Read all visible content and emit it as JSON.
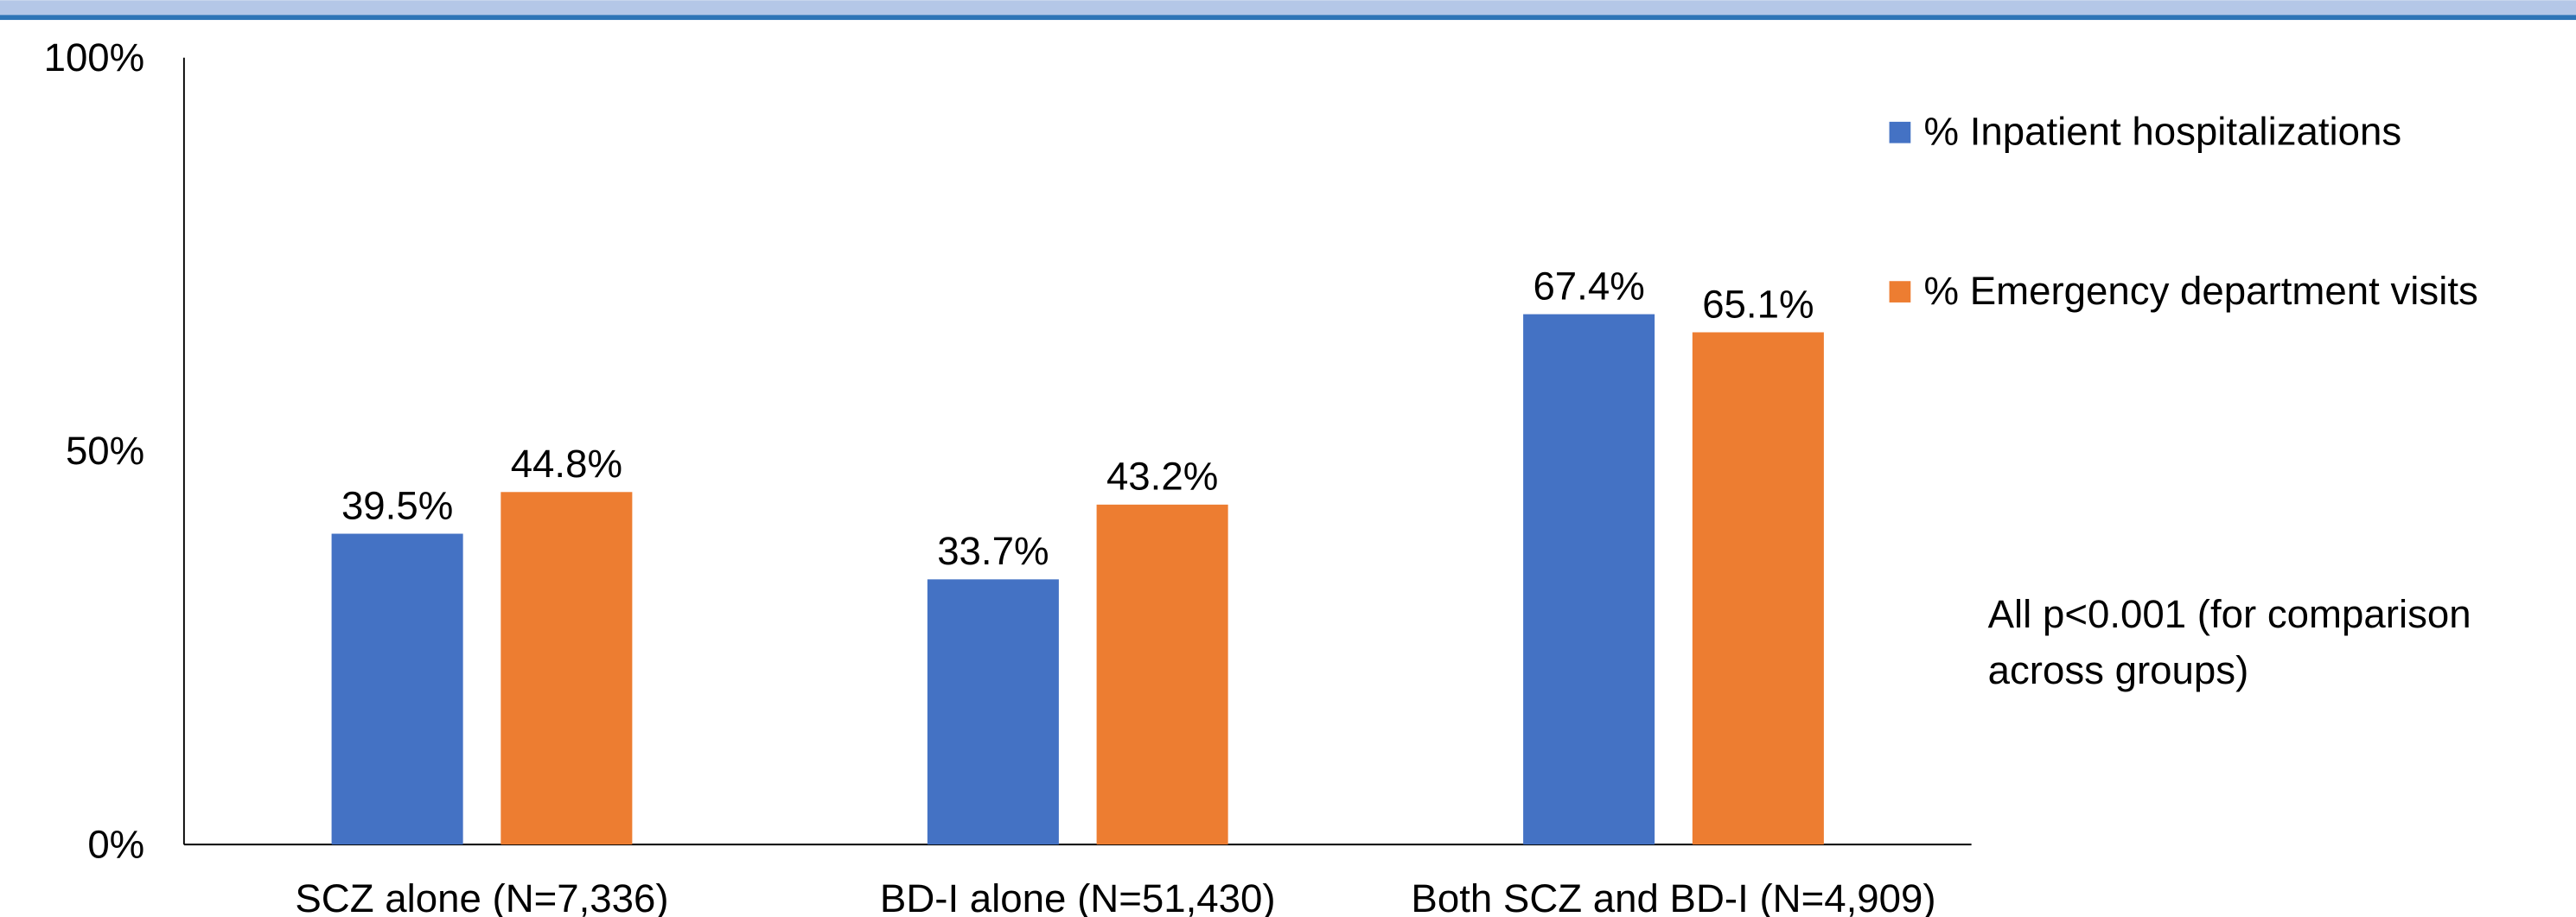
{
  "chart_data": {
    "type": "bar",
    "categories": [
      "SCZ alone (N=7,336)",
      "BD-I alone (N=51,430)",
      "Both SCZ and BD-I (N=4,909)"
    ],
    "series": [
      {
        "name": "% Inpatient hospitalizations",
        "color": "#4472c4",
        "values": [
          39.5,
          33.7,
          67.4
        ],
        "value_labels": [
          "39.5%",
          "33.7%",
          "67.4%"
        ]
      },
      {
        "name": "% Emergency department visits",
        "color": "#ed7d31",
        "values": [
          44.8,
          43.2,
          65.1
        ],
        "value_labels": [
          "44.8%",
          "43.2%",
          "65.1%"
        ]
      }
    ],
    "ylim": [
      0,
      100
    ],
    "yticks": [
      {
        "value": 0,
        "label": "0%"
      },
      {
        "value": 50,
        "label": "50%"
      },
      {
        "value": 100,
        "label": "100%"
      }
    ],
    "grid": false,
    "legend": "right",
    "annotation": [
      "All p<0.001 (for comparison",
      "across groups)"
    ]
  }
}
